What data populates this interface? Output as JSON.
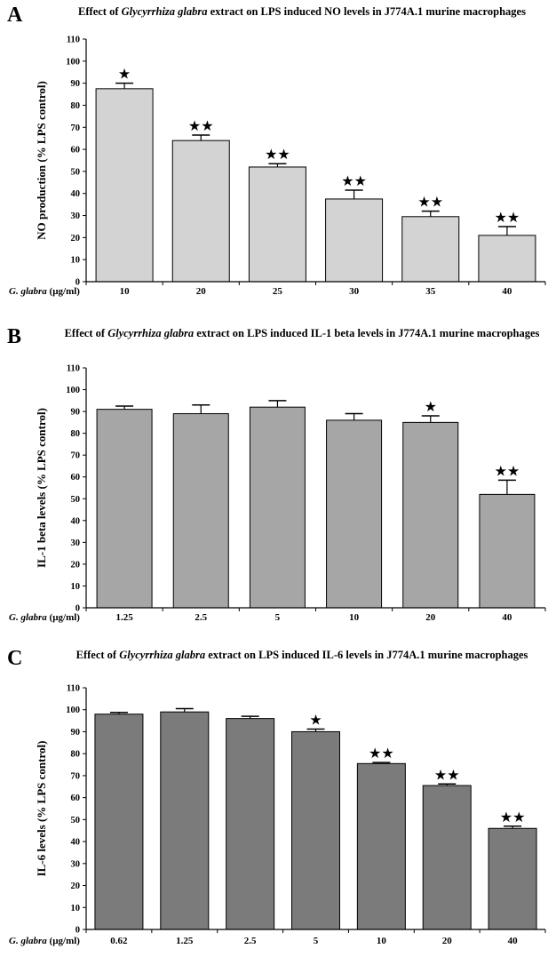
{
  "chart_data": [
    {
      "type": "bar",
      "panel_letter": "A",
      "title_pre": "Effect of ",
      "title_italic": "Glycyrrhiza glabra",
      "title_post": " extract on LPS induced NO levels in J774A.1 murine macrophages",
      "ylabel": "NO production (% LPS control)",
      "xlabel_italic": "G. glabra",
      "xlabel_unit": "(µg/ml)",
      "categories": [
        "10",
        "20",
        "25",
        "30",
        "35",
        "40"
      ],
      "values": [
        87.5,
        64,
        52,
        37.5,
        29.5,
        21
      ],
      "errors": [
        2.5,
        2.5,
        1.5,
        4,
        2.5,
        4
      ],
      "significance": [
        "★",
        "★★",
        "★★",
        "★★",
        "★★",
        "★★"
      ],
      "ylim": [
        0,
        110
      ],
      "yticks": [
        0,
        10,
        20,
        30,
        40,
        50,
        60,
        70,
        80,
        90,
        100,
        110
      ],
      "bar_color": "#d3d3d3"
    },
    {
      "type": "bar",
      "panel_letter": "B",
      "title_pre": "Effect of ",
      "title_italic": "Glycyrrhiza glabra",
      "title_post": " extract on LPS induced IL-1 beta levels in J774A.1 murine macrophages",
      "ylabel": "IL-1 beta levels (% LPS control)",
      "xlabel_italic": "G. glabra",
      "xlabel_unit": "(µg/ml)",
      "categories": [
        "1.25",
        "2.5",
        "5",
        "10",
        "20",
        "40"
      ],
      "values": [
        91,
        89,
        92,
        86,
        85,
        52
      ],
      "errors": [
        1.5,
        4,
        3,
        3,
        3,
        6.5
      ],
      "significance": [
        "",
        "",
        "",
        "",
        "★",
        "★★"
      ],
      "ylim": [
        0,
        110
      ],
      "yticks": [
        0,
        10,
        20,
        30,
        40,
        50,
        60,
        70,
        80,
        90,
        100,
        110
      ],
      "bar_color": "#a6a6a6"
    },
    {
      "type": "bar",
      "panel_letter": "C",
      "title_pre": "Effect of ",
      "title_italic": "Glycyrrhiza glabra",
      "title_post": " extract on LPS induced IL-6 levels in J774A.1 murine macrophages",
      "ylabel": "IL-6 levels (% LPS control)",
      "xlabel_italic": "G. glabra",
      "xlabel_unit": "(µg/ml)",
      "categories": [
        "0.62",
        "1.25",
        "2.5",
        "5",
        "10",
        "20",
        "40"
      ],
      "values": [
        98,
        99,
        96,
        90,
        75.5,
        65.5,
        46
      ],
      "errors": [
        0.8,
        1.5,
        1,
        1.2,
        0.5,
        0.7,
        1
      ],
      "significance": [
        "",
        "",
        "",
        "★",
        "★★",
        "★★",
        "★★"
      ],
      "ylim": [
        0,
        110
      ],
      "yticks": [
        0,
        10,
        20,
        30,
        40,
        50,
        60,
        70,
        80,
        90,
        100,
        110
      ],
      "bar_color": "#7b7b7b"
    }
  ]
}
